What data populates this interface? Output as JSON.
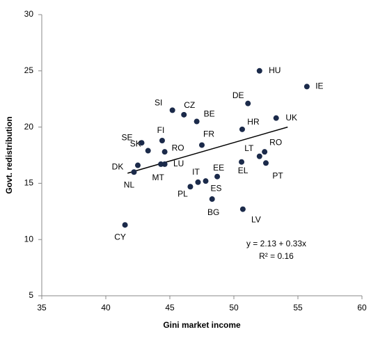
{
  "chart_data": {
    "type": "scatter",
    "xlabel": "Gini market income",
    "ylabel": "Govt. redistribution",
    "labels": [
      "HU",
      "IE",
      "DE",
      "UK",
      "HR",
      "SI",
      "CZ",
      "BE",
      "FR",
      "FI",
      "SE",
      "SK",
      "RO",
      "LU",
      "MT",
      "DK",
      "NL",
      "LT",
      "RO",
      "PT",
      "EL",
      "EE",
      "IT",
      "PL",
      "ES",
      "BG",
      "LV",
      "CY"
    ],
    "x": [
      52.0,
      55.7,
      51.1,
      53.3,
      50.65,
      45.2,
      46.1,
      47.1,
      47.5,
      44.4,
      42.8,
      43.3,
      44.6,
      44.6,
      44.3,
      42.5,
      42.2,
      52.0,
      52.4,
      52.5,
      50.6,
      48.7,
      47.2,
      46.6,
      47.8,
      48.3,
      50.7,
      41.5
    ],
    "values": [
      25.0,
      23.6,
      22.1,
      20.8,
      19.8,
      21.5,
      21.1,
      20.5,
      18.4,
      18.8,
      18.6,
      17.9,
      17.8,
      16.7,
      16.7,
      16.6,
      16.0,
      17.4,
      17.8,
      16.8,
      16.9,
      15.6,
      15.1,
      14.7,
      15.2,
      13.6,
      12.7,
      11.3
    ],
    "color": "#1b2a4a",
    "trendline": {
      "x": [
        41.7,
        54.2
      ],
      "values": [
        15.9,
        20.0
      ]
    },
    "annotations": [
      "y = 2.13 + 0.33x",
      "R² = 0.16"
    ],
    "xlim": [
      35,
      60
    ],
    "xticks": [
      35,
      40,
      45,
      50,
      55,
      60
    ],
    "ylim": [
      5,
      30
    ],
    "yticks": [
      5,
      10,
      15,
      20,
      25,
      30
    ]
  }
}
